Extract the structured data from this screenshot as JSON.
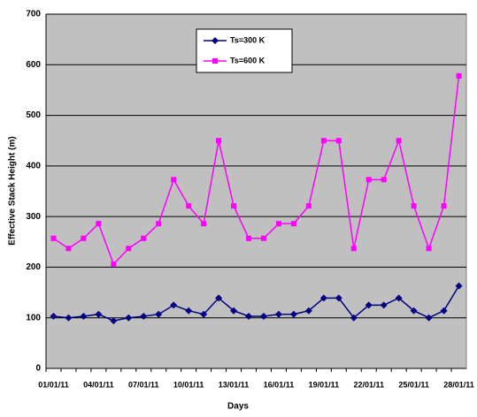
{
  "chart_data": {
    "type": "line",
    "x_label": "Days",
    "y_label": "Effective Stack Height (m)",
    "categories": [
      "01/01/11",
      null,
      null,
      "04/01/11",
      null,
      null,
      "07/01/11",
      null,
      null,
      "10/01/11",
      null,
      null,
      "13/01/11",
      null,
      null,
      "16/01/11",
      null,
      null,
      "19/01/11",
      null,
      null,
      "22/01/11",
      null,
      null,
      "25/01/11",
      null,
      null,
      "28/01/11"
    ],
    "series": [
      {
        "name": "Ts=300 K",
        "color": "#000080",
        "marker": "diamond",
        "values": [
          103,
          100,
          103,
          107,
          94,
          100,
          103,
          107,
          125,
          114,
          107,
          139,
          114,
          103,
          103,
          107,
          107,
          114,
          139,
          139,
          100,
          125,
          125,
          139,
          114,
          100,
          114,
          163
        ]
      },
      {
        "name": "Ts=600 K",
        "color": "#FF00FF",
        "marker": "square",
        "values": [
          257,
          237,
          257,
          286,
          206,
          237,
          257,
          286,
          373,
          321,
          286,
          450,
          321,
          257,
          257,
          286,
          286,
          321,
          450,
          450,
          237,
          373,
          373,
          450,
          321,
          237,
          321,
          578
        ]
      }
    ],
    "ylim": [
      0,
      700
    ],
    "yticks": [
      0,
      100,
      200,
      300,
      400,
      500,
      600,
      700
    ],
    "grid": true
  }
}
